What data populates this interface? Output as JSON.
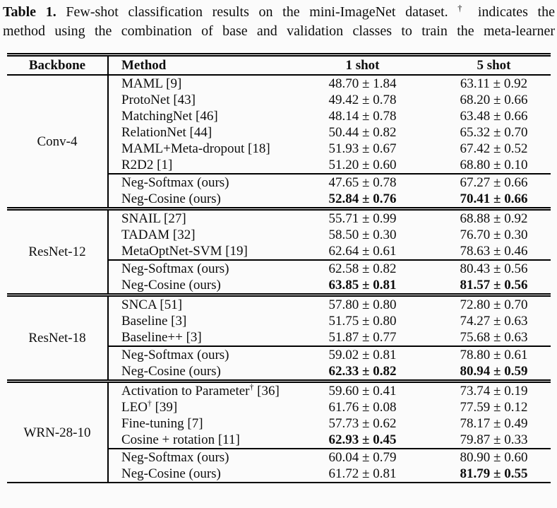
{
  "colors": {
    "background": "#fbfbfb",
    "text": "#0e0e0e",
    "rule": "#000000"
  },
  "caption": {
    "label": "Table 1.",
    "line1": "Few-shot classification results on the mini-ImageNet dataset. † indicates the",
    "line2": "method using the combination of base and validation classes to train the meta-learner"
  },
  "table": {
    "headers": {
      "backbone": "Backbone",
      "method": "Method",
      "one_shot": "1 shot",
      "five_shot": "5 shot"
    },
    "sections": [
      {
        "backbone": "Conv-4",
        "rows": [
          {
            "group": "baseline",
            "method": "MAML [9]",
            "one_shot": "48.70 ± 1.84",
            "five_shot": "63.11 ± 0.92"
          },
          {
            "group": "baseline",
            "method": "ProtoNet [43]",
            "one_shot": "49.42 ± 0.78",
            "five_shot": "68.20 ± 0.66"
          },
          {
            "group": "baseline",
            "method": "MatchingNet [46]",
            "one_shot": "48.14 ± 0.78",
            "five_shot": "63.48 ± 0.66"
          },
          {
            "group": "baseline",
            "method": "RelationNet [44]",
            "one_shot": "50.44 ± 0.82",
            "five_shot": "65.32 ± 0.70"
          },
          {
            "group": "baseline",
            "method": "MAML+Meta-dropout [18]",
            "one_shot": "51.93 ± 0.67",
            "five_shot": "67.42 ± 0.52"
          },
          {
            "group": "baseline",
            "method": "R2D2 [1]",
            "one_shot": "51.20 ± 0.60",
            "five_shot": "68.80 ± 0.10"
          },
          {
            "group": "ours",
            "method": "Neg-Softmax (ours)",
            "one_shot": "47.65 ± 0.78",
            "five_shot": "67.27 ± 0.66"
          },
          {
            "group": "ours",
            "method": "Neg-Cosine (ours)",
            "one_shot": "52.84 ± 0.76",
            "five_shot": "70.41 ± 0.66",
            "bold_one": true,
            "bold_five": true
          }
        ]
      },
      {
        "backbone": "ResNet-12",
        "rows": [
          {
            "group": "baseline",
            "method": "SNAIL [27]",
            "one_shot": "55.71 ± 0.99",
            "five_shot": "68.88 ± 0.92"
          },
          {
            "group": "baseline",
            "method": "TADAM [32]",
            "one_shot": "58.50 ± 0.30",
            "five_shot": "76.70 ± 0.30"
          },
          {
            "group": "baseline",
            "method": "MetaOptNet-SVM [19]",
            "one_shot": "62.64 ± 0.61",
            "five_shot": "78.63 ± 0.46"
          },
          {
            "group": "ours",
            "method": "Neg-Softmax (ours)",
            "one_shot": "62.58 ± 0.82",
            "five_shot": "80.43 ± 0.56"
          },
          {
            "group": "ours",
            "method": "Neg-Cosine (ours)",
            "one_shot": "63.85 ± 0.81",
            "five_shot": "81.57 ± 0.56",
            "bold_one": true,
            "bold_five": true
          }
        ]
      },
      {
        "backbone": "ResNet-18",
        "rows": [
          {
            "group": "baseline",
            "method": "SNCA [51]",
            "one_shot": "57.80 ± 0.80",
            "five_shot": "72.80 ± 0.70"
          },
          {
            "group": "baseline",
            "method": "Baseline [3]",
            "one_shot": "51.75 ± 0.80",
            "five_shot": "74.27 ± 0.63"
          },
          {
            "group": "baseline",
            "method": "Baseline++ [3]",
            "one_shot": "51.87 ± 0.77",
            "five_shot": "75.68 ± 0.63"
          },
          {
            "group": "ours",
            "method": "Neg-Softmax (ours)",
            "one_shot": "59.02 ± 0.81",
            "five_shot": "78.80 ± 0.61"
          },
          {
            "group": "ours",
            "method": "Neg-Cosine (ours)",
            "one_shot": "62.33 ± 0.82",
            "five_shot": "80.94 ± 0.59",
            "bold_one": true,
            "bold_five": true
          }
        ]
      },
      {
        "backbone": "WRN-28-10",
        "rows": [
          {
            "group": "baseline",
            "method": "Activation to Parameter† [36]",
            "one_shot": "59.60 ± 0.41",
            "five_shot": "73.74 ± 0.19"
          },
          {
            "group": "baseline",
            "method": "LEO† [39]",
            "one_shot": "61.76 ± 0.08",
            "five_shot": "77.59 ± 0.12"
          },
          {
            "group": "baseline",
            "method": "Fine-tuning [7]",
            "one_shot": "57.73 ± 0.62",
            "five_shot": "78.17 ± 0.49"
          },
          {
            "group": "baseline",
            "method": "Cosine + rotation [11]",
            "one_shot": "62.93 ± 0.45",
            "five_shot": "79.87 ± 0.33",
            "bold_one": true
          },
          {
            "group": "ours",
            "method": "Neg-Softmax (ours)",
            "one_shot": "60.04 ± 0.79",
            "five_shot": "80.90 ± 0.60"
          },
          {
            "group": "ours",
            "method": "Neg-Cosine (ours)",
            "one_shot": "61.72 ± 0.81",
            "five_shot": "81.79 ± 0.55",
            "bold_five": true
          }
        ]
      }
    ]
  }
}
